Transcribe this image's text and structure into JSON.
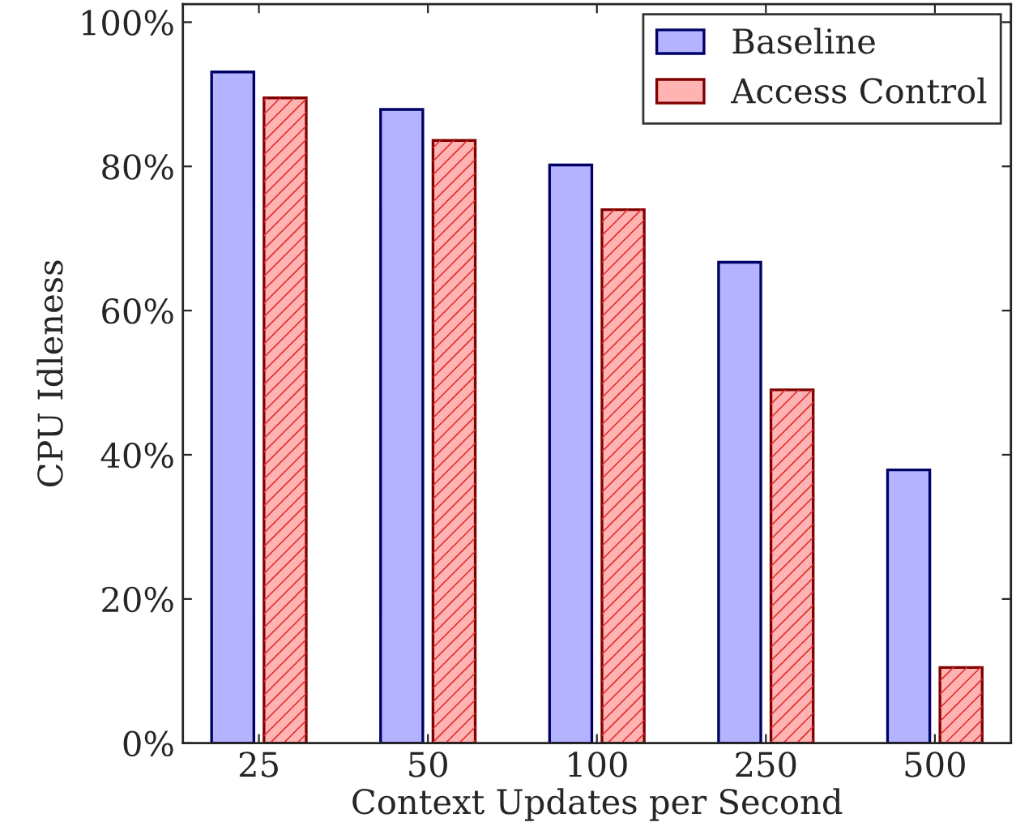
{
  "chart_data": {
    "type": "bar",
    "xlabel": "Context Updates per Second",
    "ylabel": "CPU Idleness",
    "categories": [
      "25",
      "50",
      "100",
      "250",
      "500"
    ],
    "series": [
      {
        "name": "Baseline",
        "color": "#b3b3ff",
        "values": [
          93.1,
          87.9,
          80.2,
          66.7,
          37.9
        ]
      },
      {
        "name": "Access Control",
        "color": "#ffb3b3",
        "values": [
          89.5,
          83.6,
          74.0,
          49.0,
          10.5
        ]
      }
    ],
    "ylim": [
      0,
      102.5
    ],
    "yticks": [
      {
        "value": 0,
        "label": "0%"
      },
      {
        "value": 20,
        "label": "20%"
      },
      {
        "value": 40,
        "label": "40%"
      },
      {
        "value": 60,
        "label": "60%"
      },
      {
        "value": 80,
        "label": "80%"
      },
      {
        "value": 100,
        "label": "100%"
      }
    ],
    "grid": false,
    "legend": "top right"
  }
}
